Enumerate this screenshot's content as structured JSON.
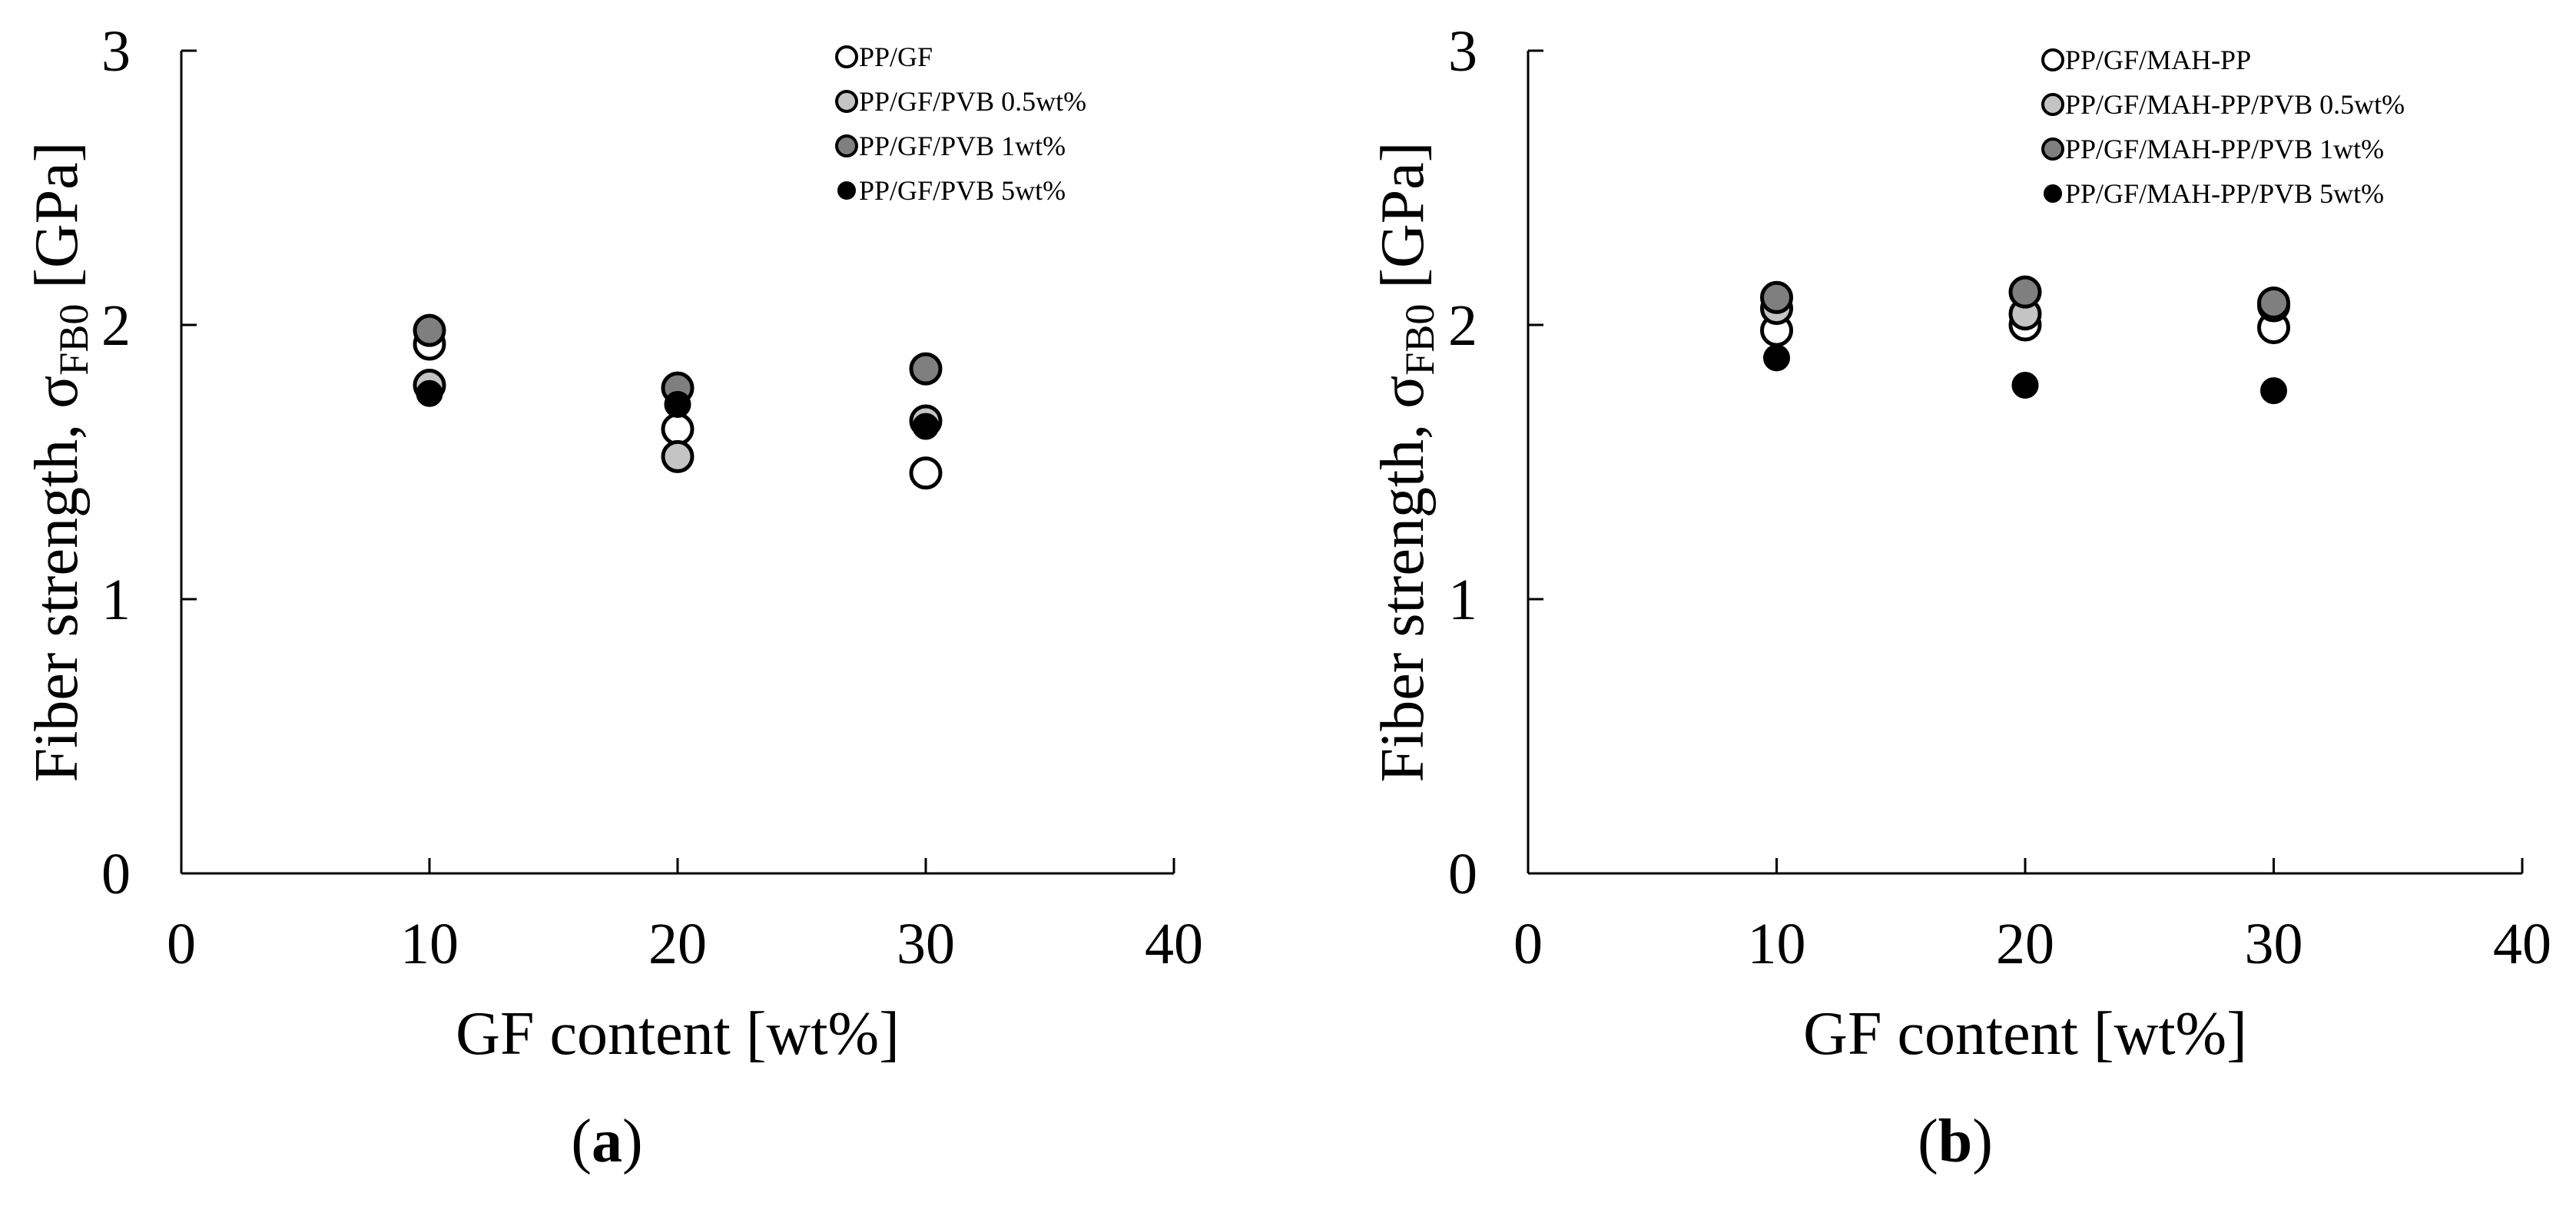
{
  "colors": {
    "PP/GF": "#ffffff",
    "PVB 0.5wt%": "#c4c4c4",
    "PVB 1wt%": "#7f7f7f",
    "PVB 5wt%": "#000000",
    "axis": "#000000"
  },
  "chart_data": [
    {
      "type": "scatter",
      "panel_label": "a",
      "xlabel": "GF content [wt%]",
      "ylabel": {
        "text": "Fiber strength, σ",
        "subscript": "FB0",
        "unit": " [GPa]"
      },
      "xlim": [
        0,
        40
      ],
      "ylim": [
        0,
        3
      ],
      "xticks": [
        "0",
        "10",
        "20",
        "30",
        "40"
      ],
      "yticks": [
        "0",
        "1",
        "2",
        "3"
      ],
      "grid": false,
      "legend_position": "top-right",
      "series": [
        {
          "name": "PP/GF",
          "fill": "#ffffff",
          "x": [
            10,
            20,
            30
          ],
          "y": [
            1.93,
            1.62,
            1.46
          ]
        },
        {
          "name": "PP/GF/PVB 0.5wt%",
          "fill": "#c4c4c4",
          "x": [
            10,
            20,
            30
          ],
          "y": [
            1.78,
            1.52,
            1.65
          ]
        },
        {
          "name": "PP/GF/PVB 1wt%",
          "fill": "#7f7f7f",
          "x": [
            10,
            20,
            30
          ],
          "y": [
            1.98,
            1.77,
            1.84
          ]
        },
        {
          "name": "PP/GF/PVB 5wt%",
          "fill": "#000000",
          "x": [
            10,
            20,
            30
          ],
          "y": [
            1.75,
            1.71,
            1.63
          ]
        }
      ]
    },
    {
      "type": "scatter",
      "panel_label": "b",
      "xlabel": "GF content [wt%]",
      "ylabel": {
        "text": "Fiber strength, σ",
        "subscript": "FB0",
        "unit": " [GPa]"
      },
      "xlim": [
        0,
        40
      ],
      "ylim": [
        0,
        3
      ],
      "xticks": [
        "0",
        "10",
        "20",
        "30",
        "40"
      ],
      "yticks": [
        "0",
        "1",
        "2",
        "3"
      ],
      "grid": false,
      "legend_position": "top-right",
      "series": [
        {
          "name": "PP/GF/MAH-PP",
          "fill": "#ffffff",
          "x": [
            10,
            20,
            30
          ],
          "y": [
            1.98,
            2.0,
            1.99
          ]
        },
        {
          "name": "PP/GF/MAH-PP/PVB 0.5wt%",
          "fill": "#c4c4c4",
          "x": [
            10,
            20,
            30
          ],
          "y": [
            2.06,
            2.04,
            2.07
          ]
        },
        {
          "name": "PP/GF/MAH-PP/PVB 1wt%",
          "fill": "#7f7f7f",
          "x": [
            10,
            20,
            30
          ],
          "y": [
            2.1,
            2.12,
            2.08
          ]
        },
        {
          "name": "PP/GF/MAH-PP/PVB 5wt%",
          "fill": "#000000",
          "x": [
            10,
            20,
            30
          ],
          "y": [
            1.88,
            1.78,
            1.76
          ]
        }
      ]
    }
  ]
}
